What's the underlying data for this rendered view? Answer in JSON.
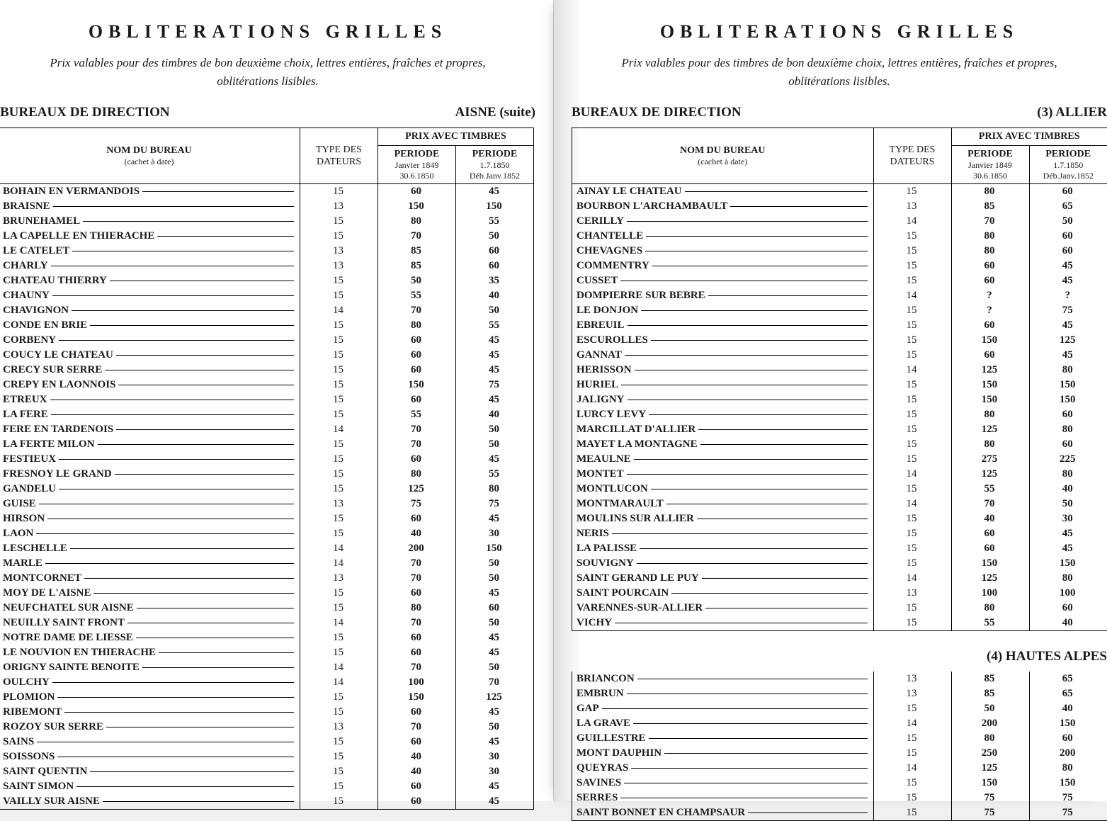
{
  "title": "OBLITERATIONS GRILLES",
  "subtitle1": "Prix valables pour des timbres de bon deuxième choix, lettres entières, fraîches et propres,",
  "subtitle2": "oblitérations lisibles.",
  "section_label": "BUREAUX DE DIRECTION",
  "headers": {
    "nom": "NOM DU BUREAU",
    "nom_sub": "(cachet à date)",
    "type": "TYPE DES",
    "type_sub": "DATEURS",
    "prix": "PRIX AVEC TIMBRES",
    "p1a": "PERIODE",
    "p1b": "Janvier 1849",
    "p1c": "30.6.1850",
    "p2a": "PERIODE",
    "p2b": "1.7.1850",
    "p2c": "Déb.Janv.1852"
  },
  "left": {
    "dept": "AISNE (suite)",
    "rows": [
      {
        "n": "BOHAIN EN VERMANDOIS",
        "t": "15",
        "p1": "60",
        "p2": "45"
      },
      {
        "n": "BRAISNE",
        "t": "13",
        "p1": "150",
        "p2": "150"
      },
      {
        "n": "BRUNEHAMEL",
        "t": "15",
        "p1": "80",
        "p2": "55"
      },
      {
        "n": "LA CAPELLE EN THIERACHE",
        "t": "15",
        "p1": "70",
        "p2": "50"
      },
      {
        "n": "LE CATELET",
        "t": "13",
        "p1": "85",
        "p2": "60"
      },
      {
        "n": "CHARLY",
        "t": "13",
        "p1": "85",
        "p2": "60"
      },
      {
        "n": "CHATEAU THIERRY",
        "t": "15",
        "p1": "50",
        "p2": "35"
      },
      {
        "n": "CHAUNY",
        "t": "15",
        "p1": "55",
        "p2": "40"
      },
      {
        "n": "CHAVIGNON",
        "t": "14",
        "p1": "70",
        "p2": "50"
      },
      {
        "n": "CONDE EN BRIE",
        "t": "15",
        "p1": "80",
        "p2": "55"
      },
      {
        "n": "CORBENY",
        "t": "15",
        "p1": "60",
        "p2": "45"
      },
      {
        "n": "COUCY LE CHATEAU",
        "t": "15",
        "p1": "60",
        "p2": "45"
      },
      {
        "n": "CRECY SUR SERRE",
        "t": "15",
        "p1": "60",
        "p2": "45"
      },
      {
        "n": "CREPY EN LAONNOIS",
        "t": "15",
        "p1": "150",
        "p2": "75"
      },
      {
        "n": "ETREUX",
        "t": "15",
        "p1": "60",
        "p2": "45"
      },
      {
        "n": "LA FERE",
        "t": "15",
        "p1": "55",
        "p2": "40"
      },
      {
        "n": "FERE EN TARDENOIS",
        "t": "14",
        "p1": "70",
        "p2": "50"
      },
      {
        "n": "LA FERTE MILON",
        "t": "15",
        "p1": "70",
        "p2": "50"
      },
      {
        "n": "FESTIEUX",
        "t": "15",
        "p1": "60",
        "p2": "45"
      },
      {
        "n": "FRESNOY LE GRAND",
        "t": "15",
        "p1": "80",
        "p2": "55"
      },
      {
        "n": "GANDELU",
        "t": "15",
        "p1": "125",
        "p2": "80"
      },
      {
        "n": "GUISE",
        "t": "13",
        "p1": "75",
        "p2": "75"
      },
      {
        "n": "HIRSON",
        "t": "15",
        "p1": "60",
        "p2": "45"
      },
      {
        "n": "LAON",
        "t": "15",
        "p1": "40",
        "p2": "30"
      },
      {
        "n": "LESCHELLE",
        "t": "14",
        "p1": "200",
        "p2": "150"
      },
      {
        "n": "MARLE",
        "t": "14",
        "p1": "70",
        "p2": "50"
      },
      {
        "n": "MONTCORNET",
        "t": "13",
        "p1": "70",
        "p2": "50"
      },
      {
        "n": "MOY DE L'AISNE",
        "t": "15",
        "p1": "60",
        "p2": "45"
      },
      {
        "n": "NEUFCHATEL SUR AISNE",
        "t": "15",
        "p1": "80",
        "p2": "60"
      },
      {
        "n": "NEUILLY SAINT FRONT",
        "t": "14",
        "p1": "70",
        "p2": "50"
      },
      {
        "n": "NOTRE DAME DE LIESSE",
        "t": "15",
        "p1": "60",
        "p2": "45"
      },
      {
        "n": "LE NOUVION EN THIERACHE",
        "t": "15",
        "p1": "60",
        "p2": "45"
      },
      {
        "n": "ORIGNY SAINTE BENOITE",
        "t": "14",
        "p1": "70",
        "p2": "50"
      },
      {
        "n": "OULCHY",
        "t": "14",
        "p1": "100",
        "p2": "70"
      },
      {
        "n": "PLOMION",
        "t": "15",
        "p1": "150",
        "p2": "125"
      },
      {
        "n": "RIBEMONT",
        "t": "15",
        "p1": "60",
        "p2": "45"
      },
      {
        "n": "ROZOY SUR SERRE",
        "t": "13",
        "p1": "70",
        "p2": "50"
      },
      {
        "n": "SAINS",
        "t": "15",
        "p1": "60",
        "p2": "45"
      },
      {
        "n": "SOISSONS",
        "t": "15",
        "p1": "40",
        "p2": "30"
      },
      {
        "n": "SAINT QUENTIN",
        "t": "15",
        "p1": "40",
        "p2": "30"
      },
      {
        "n": "SAINT SIMON",
        "t": "15",
        "p1": "60",
        "p2": "45"
      },
      {
        "n": "VAILLY SUR AISNE",
        "t": "15",
        "p1": "60",
        "p2": "45"
      }
    ]
  },
  "right": {
    "dept1": "(3) ALLIER",
    "rows1": [
      {
        "n": "AINAY LE CHATEAU",
        "t": "15",
        "p1": "80",
        "p2": "60"
      },
      {
        "n": "BOURBON L'ARCHAMBAULT",
        "t": "13",
        "p1": "85",
        "p2": "65"
      },
      {
        "n": "CERILLY",
        "t": "14",
        "p1": "70",
        "p2": "50"
      },
      {
        "n": "CHANTELLE",
        "t": "15",
        "p1": "80",
        "p2": "60"
      },
      {
        "n": "CHEVAGNES",
        "t": "15",
        "p1": "80",
        "p2": "60"
      },
      {
        "n": "COMMENTRY",
        "t": "15",
        "p1": "60",
        "p2": "45"
      },
      {
        "n": "CUSSET",
        "t": "15",
        "p1": "60",
        "p2": "45"
      },
      {
        "n": "DOMPIERRE SUR BEBRE",
        "t": "14",
        "p1": "?",
        "p2": "?"
      },
      {
        "n": "LE DONJON",
        "t": "15",
        "p1": "?",
        "p2": "75"
      },
      {
        "n": "EBREUIL",
        "t": "15",
        "p1": "60",
        "p2": "45"
      },
      {
        "n": "ESCUROLLES",
        "t": "15",
        "p1": "150",
        "p2": "125"
      },
      {
        "n": "GANNAT",
        "t": "15",
        "p1": "60",
        "p2": "45"
      },
      {
        "n": "HERISSON",
        "t": "14",
        "p1": "125",
        "p2": "80"
      },
      {
        "n": "HURIEL",
        "t": "15",
        "p1": "150",
        "p2": "150"
      },
      {
        "n": "JALIGNY",
        "t": "15",
        "p1": "150",
        "p2": "150"
      },
      {
        "n": "LURCY LEVY",
        "t": "15",
        "p1": "80",
        "p2": "60"
      },
      {
        "n": "MARCILLAT D'ALLIER",
        "t": "15",
        "p1": "125",
        "p2": "80"
      },
      {
        "n": "MAYET LA MONTAGNE",
        "t": "15",
        "p1": "80",
        "p2": "60"
      },
      {
        "n": "MEAULNE",
        "t": "15",
        "p1": "275",
        "p2": "225"
      },
      {
        "n": "MONTET",
        "t": "14",
        "p1": "125",
        "p2": "80"
      },
      {
        "n": "MONTLUCON",
        "t": "15",
        "p1": "55",
        "p2": "40"
      },
      {
        "n": "MONTMARAULT",
        "t": "14",
        "p1": "70",
        "p2": "50"
      },
      {
        "n": "MOULINS SUR ALLIER",
        "t": "15",
        "p1": "40",
        "p2": "30"
      },
      {
        "n": "NERIS",
        "t": "15",
        "p1": "60",
        "p2": "45"
      },
      {
        "n": "LA PALISSE",
        "t": "15",
        "p1": "60",
        "p2": "45"
      },
      {
        "n": "SOUVIGNY",
        "t": "15",
        "p1": "150",
        "p2": "150"
      },
      {
        "n": "SAINT GERAND LE PUY",
        "t": "14",
        "p1": "125",
        "p2": "80"
      },
      {
        "n": "SAINT POURCAIN",
        "t": "13",
        "p1": "100",
        "p2": "100"
      },
      {
        "n": "VARENNES-SUR-ALLIER",
        "t": "15",
        "p1": "80",
        "p2": "60"
      },
      {
        "n": "VICHY",
        "t": "15",
        "p1": "55",
        "p2": "40"
      }
    ],
    "dept2": "(4) HAUTES ALPES",
    "rows2": [
      {
        "n": "BRIANCON",
        "t": "13",
        "p1": "85",
        "p2": "65"
      },
      {
        "n": "EMBRUN",
        "t": "13",
        "p1": "85",
        "p2": "65"
      },
      {
        "n": "GAP",
        "t": "15",
        "p1": "50",
        "p2": "40"
      },
      {
        "n": "LA GRAVE",
        "t": "14",
        "p1": "200",
        "p2": "150"
      },
      {
        "n": "GUILLESTRE",
        "t": "15",
        "p1": "80",
        "p2": "60"
      },
      {
        "n": "MONT DAUPHIN",
        "t": "15",
        "p1": "250",
        "p2": "200"
      },
      {
        "n": "QUEYRAS",
        "t": "14",
        "p1": "125",
        "p2": "80"
      },
      {
        "n": "SAVINES",
        "t": "15",
        "p1": "150",
        "p2": "150"
      },
      {
        "n": "SERRES",
        "t": "15",
        "p1": "75",
        "p2": "75"
      },
      {
        "n": "SAINT BONNET EN CHAMPSAUR",
        "t": "15",
        "p1": "75",
        "p2": "75"
      }
    ]
  }
}
